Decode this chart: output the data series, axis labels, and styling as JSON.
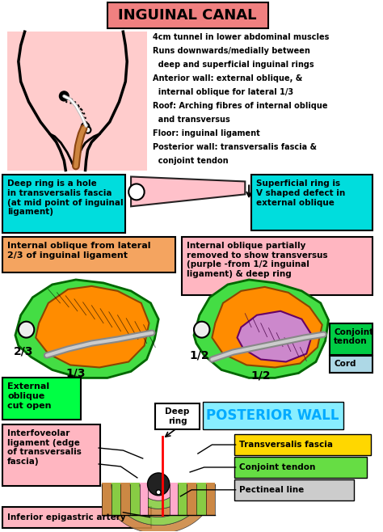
{
  "title": "INGUINAL CANAL",
  "title_bg": "#F08080",
  "bg_color": "#FFFFFF",
  "description_lines": [
    "4cm tunnel in lower abdominal muscles",
    "Runs downwards/medially between",
    "  deep and superficial inguinal rings",
    "Anterior wall: external oblique, &",
    "  internal oblique for lateral 1/3",
    "Roof: Arching fibres of internal oblique",
    "  and transversus",
    "Floor: inguinal ligament",
    "Posterior wall: transversalis fascia &",
    "  conjoint tendon"
  ],
  "box1_text": "Deep ring is a hole\nin transversalis fascia\n(at mid point of inguinal\nligament)",
  "box1_bg": "#00DDDD",
  "box2_text": "Superficial ring is\nV shaped defect in\nexternal oblique",
  "box2_bg": "#00DDDD",
  "box3_text": "Internal oblique from lateral\n2/3 of inguinal ligament",
  "box3_bg": "#F4A460",
  "box4_text": "Internal oblique partially\nremoved to show transversus\n(purple -from 1/2 inguinal\nligament) & deep ring",
  "box4_bg": "#FFB6C1",
  "box5_text": "Conjoint\ntendon",
  "box5_bg": "#00CC44",
  "box6_text": "Cord",
  "box6_bg": "#ADD8E6",
  "box7_text": "External\noblique\ncut open",
  "box7_bg": "#00FF44",
  "posterior_title": "POSTERIOR WALL",
  "posterior_title_color": "#00AAFF",
  "box8_text": "Deep\nring",
  "box9_text": "Interfoveolar\nligament (edge\nof transversalis\nfascia)",
  "box9_bg": "#FFB6C1",
  "box10_text": "Transversalis fascia",
  "box10_bg": "#FFD700",
  "box11_text": "Conjoint tendon",
  "box11_bg": "#66DD44",
  "box12_text": "Pectineal line",
  "box12_bg": "#CCCCCC",
  "box13_text": "Inferior epigastric artery",
  "box13_bg": "#FFB6C1",
  "label_23": "2/3",
  "label_13": "1/3",
  "label_12a": "1/2",
  "label_12b": "1/2",
  "body_pink": "#FFCCCC",
  "green_muscle": "#44DD44",
  "orange_muscle": "#FF8C00",
  "purple_muscle": "#CC88CC",
  "cord_gray": "#AAAAAA",
  "tunnel_orange": "#CC8844",
  "tunnel_green": "#88CC44",
  "tunnel_pink": "#FFAACC",
  "tunnel_dark": "#222222"
}
